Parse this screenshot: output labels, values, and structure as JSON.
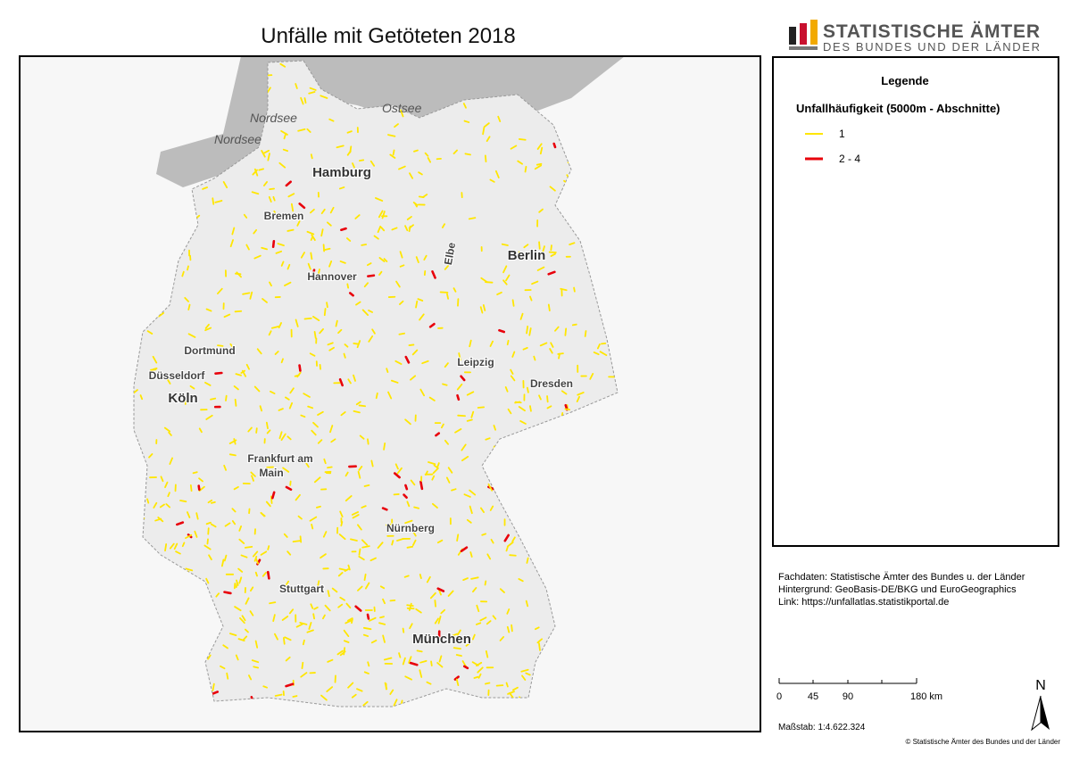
{
  "header": {
    "title": "Unfälle mit Getöteten 2018",
    "logo_line1": "STATISTISCHE ÄMTER",
    "logo_line2": "DES BUNDES UND DER LÄNDER"
  },
  "map": {
    "labels": {
      "nordsee_1": "Nordsee",
      "nordsee_2": "Nordsee",
      "ostsee": "Ostsee",
      "hamburg": "Hamburg",
      "bremen": "Bremen",
      "berlin": "Berlin",
      "hannover": "Hannover",
      "elbe": "Elbe",
      "dortmund": "Dortmund",
      "duesseldorf": "Düsseldorf",
      "koeln": "Köln",
      "leipzig": "Leipzig",
      "dresden": "Dresden",
      "frankfurt": [
        "Frankfurt am",
        "Main"
      ],
      "nuernberg": "Nürnberg",
      "stuttgart": "Stuttgart",
      "muenchen": "München"
    }
  },
  "legend": {
    "title": "Legende",
    "subtitle": "Unfallhäufigkeit (5000m - Abschnitte)",
    "items": [
      {
        "label": "1",
        "color": "#ffe600"
      },
      {
        "label": "2 - 4",
        "color": "#e8000b"
      }
    ]
  },
  "sources": [
    "Fachdaten: Statistische Ämter des Bundes u. der Länder",
    "Hintergrund: GeoBasis-DE/BKG und EuroGeographics",
    "Link: https://unfallatlas.statistikportal.de"
  ],
  "scale": {
    "labels": [
      "0",
      "45",
      "90",
      "180 km"
    ],
    "ratio": "Maßstab: 1:4.622.324"
  },
  "north": "N",
  "copyright": "© Statistische Ämter des Bundes und der Länder"
}
